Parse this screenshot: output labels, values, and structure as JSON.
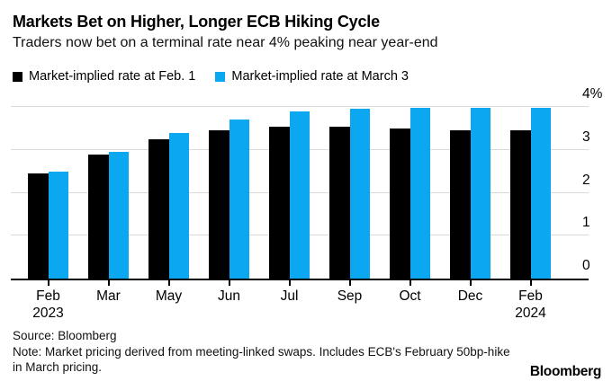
{
  "header": {
    "title": "Markets Bet on Higher, Longer ECB Hiking Cycle",
    "subtitle": "Traders now bet on a terminal rate near 4% peaking near year-end"
  },
  "colors": {
    "bar_black": "#000000",
    "bar_blue": "#0ba7f0",
    "gridline": "#d9d9d9",
    "axis": "#000000"
  },
  "chart_data": {
    "type": "bar",
    "title": "Markets Bet on Higher, Longer ECB Hiking Cycle",
    "subtitle": "Traders now bet on a terminal rate near 4% peaking near year-end",
    "categories": [
      "Feb\n2023",
      "Mar",
      "May",
      "Jun",
      "Jul",
      "Sep",
      "Oct",
      "Dec",
      "Feb\n2024"
    ],
    "series": [
      {
        "name": "Market-implied rate at Feb. 1",
        "color": "#000000",
        "values": [
          2.45,
          2.9,
          3.25,
          3.45,
          3.55,
          3.55,
          3.5,
          3.45,
          3.45
        ]
      },
      {
        "name": "Market-implied rate at March 3",
        "color": "#0ba7f0",
        "values": [
          2.5,
          2.95,
          3.4,
          3.7,
          3.9,
          3.95,
          3.97,
          3.97,
          3.97
        ]
      }
    ],
    "ylim": [
      0,
      4
    ],
    "yticks": [
      {
        "value": 0,
        "label": "0"
      },
      {
        "value": 1,
        "label": "1"
      },
      {
        "value": 2,
        "label": "2"
      },
      {
        "value": 3,
        "label": "3"
      },
      {
        "value": 4,
        "label": "4%"
      }
    ],
    "xlabel": "",
    "ylabel": "",
    "grid": "horizontal",
    "legend_position": "top-left",
    "y_axis_side": "right"
  },
  "footer": {
    "source": "Source: Bloomberg",
    "note": "Note: Market pricing derived from meeting-linked swaps. Includes ECB's February 50bp-hike in March pricing.",
    "logo": "Bloomberg"
  }
}
